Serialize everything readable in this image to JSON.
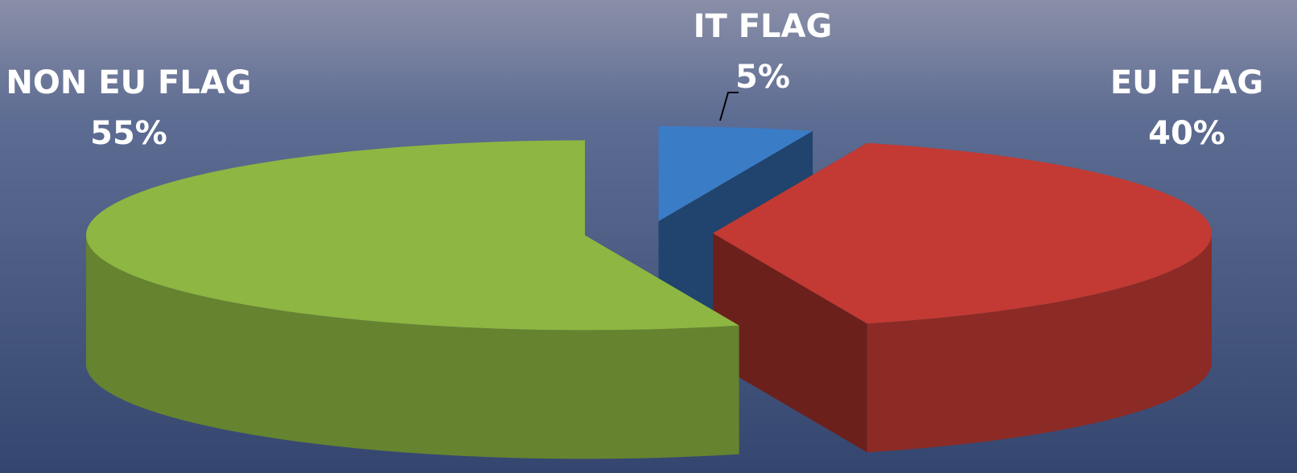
{
  "chart_data": {
    "type": "pie",
    "categories": [
      "IT FLAG",
      "EU FLAG",
      "NON EU FLAG"
    ],
    "values": [
      5,
      40,
      55
    ],
    "value_labels": [
      "5%",
      "40%",
      "55%"
    ],
    "colors": [
      "#3b7cc6",
      "#c23a33",
      "#8db642"
    ]
  }
}
